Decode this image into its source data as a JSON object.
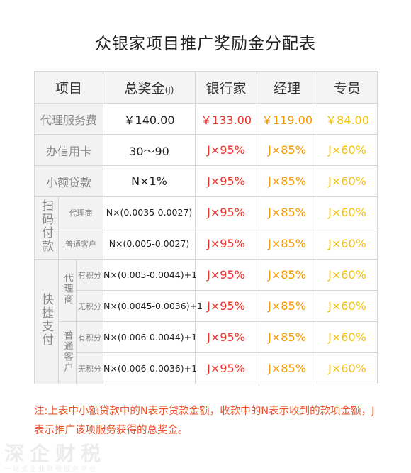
{
  "title": "众银家项目推广奖励金分配表",
  "table": {
    "header": {
      "item": "项目",
      "total": "总奖金",
      "total_unit": "(J)",
      "banker": "银行家",
      "manager": "经理",
      "staff": "专员"
    },
    "rows": [
      {
        "label": "代理服务费",
        "values": [
          "￥140.00",
          "￥133.00",
          "￥119.00",
          "￥84.00"
        ]
      },
      {
        "label": "办信用卡",
        "values": [
          "30～90",
          "J×95%",
          "J×85%",
          "J×60%"
        ]
      },
      {
        "label": "小额贷款",
        "values": [
          "N×1%",
          "J×95%",
          "J×85%",
          "J×60%"
        ]
      }
    ],
    "scan": {
      "label": "扫码付款",
      "rows": [
        {
          "label": "代理商",
          "values": [
            "N×(0.0035-0.0027)",
            "J×95%",
            "J×85%",
            "J×60%"
          ]
        },
        {
          "label": "普通客户",
          "values": [
            "N×(0.005-0.0027)",
            "J×95%",
            "J×85%",
            "J×60%"
          ]
        }
      ]
    },
    "quick": {
      "label": "快捷支付",
      "groups": [
        {
          "label": "代理商",
          "rows": [
            {
              "label": "有积分",
              "values": [
                "N×(0.005-0.0044)+1",
                "J×95%",
                "J×85%",
                "J×60%"
              ]
            },
            {
              "label": "无积分",
              "values": [
                "N×(0.0045-0.0036)+1",
                "J×95%",
                "J×85%",
                "J×60%"
              ]
            }
          ]
        },
        {
          "label": "普通客户",
          "rows": [
            {
              "label": "有积分",
              "values": [
                "N×(0.006-0.0044)+1",
                "J×95%",
                "J×85%",
                "J×60%"
              ]
            },
            {
              "label": "无积分",
              "values": [
                "N×(0.006-0.0036)+1",
                "J×95%",
                "J×85%",
                "J×60%"
              ]
            }
          ]
        }
      ]
    }
  },
  "note": "注:上表中小额贷款中的N表示贷款金额，收款中的N表示收到的款项金额，J 表示推广该项服务获得的总奖金。",
  "watermark": {
    "brand": "深企财税",
    "slogan": "一站式企业财税服务平台"
  }
}
